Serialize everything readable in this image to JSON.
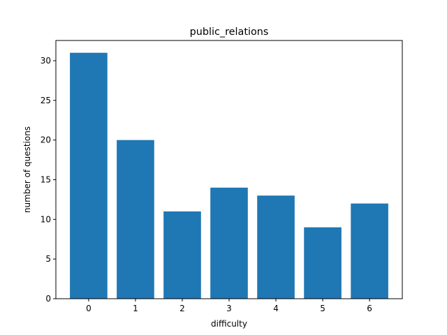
{
  "chart_data": {
    "type": "bar",
    "title": "public_relations",
    "xlabel": "difficulty",
    "ylabel": "number of questions",
    "categories": [
      "0",
      "1",
      "2",
      "3",
      "4",
      "5",
      "6"
    ],
    "values": [
      31,
      20,
      11,
      14,
      13,
      9,
      12
    ],
    "ylim": [
      0,
      32.55
    ],
    "yticks": [
      0,
      5,
      10,
      15,
      20,
      25,
      30
    ],
    "bar_color": "#1f77b4",
    "grid": false,
    "legend": "none"
  }
}
